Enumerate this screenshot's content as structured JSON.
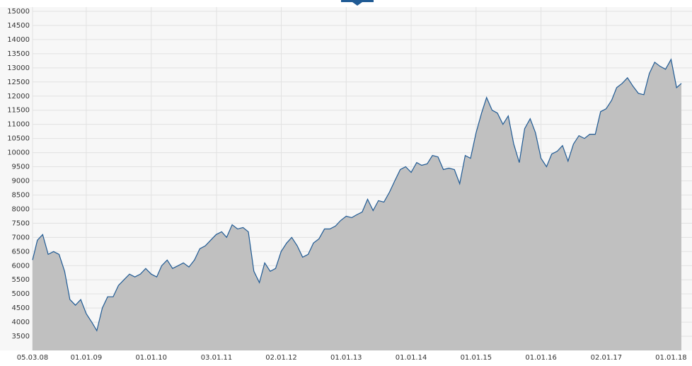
{
  "chart_data": {
    "type": "area",
    "x": [
      "2008-03-05",
      "2008-04-01",
      "2008-05-01",
      "2008-06-01",
      "2008-07-01",
      "2008-08-01",
      "2008-09-01",
      "2008-10-01",
      "2008-11-01",
      "2008-12-01",
      "2009-01-01",
      "2009-02-01",
      "2009-03-01",
      "2009-04-01",
      "2009-05-01",
      "2009-06-01",
      "2009-07-01",
      "2009-08-01",
      "2009-09-01",
      "2009-10-01",
      "2009-11-01",
      "2009-12-01",
      "2010-01-01",
      "2010-02-01",
      "2010-03-01",
      "2010-04-01",
      "2010-05-01",
      "2010-06-01",
      "2010-07-01",
      "2010-08-01",
      "2010-09-01",
      "2010-10-01",
      "2010-11-01",
      "2010-12-01",
      "2011-01-01",
      "2011-02-01",
      "2011-03-01",
      "2011-04-01",
      "2011-05-01",
      "2011-06-01",
      "2011-07-01",
      "2011-08-01",
      "2011-09-01",
      "2011-10-01",
      "2011-11-01",
      "2011-12-01",
      "2012-01-01",
      "2012-02-01",
      "2012-03-01",
      "2012-04-01",
      "2012-05-01",
      "2012-06-01",
      "2012-07-01",
      "2012-08-01",
      "2012-09-01",
      "2012-10-01",
      "2012-11-01",
      "2012-12-01",
      "2013-01-01",
      "2013-02-01",
      "2013-03-01",
      "2013-04-01",
      "2013-05-01",
      "2013-06-01",
      "2013-07-01",
      "2013-08-01",
      "2013-09-01",
      "2013-10-01",
      "2013-11-01",
      "2013-12-01",
      "2014-01-01",
      "2014-02-01",
      "2014-03-01",
      "2014-04-01",
      "2014-05-01",
      "2014-06-01",
      "2014-07-01",
      "2014-08-01",
      "2014-09-01",
      "2014-10-01",
      "2014-11-01",
      "2014-12-01",
      "2015-01-01",
      "2015-02-01",
      "2015-03-01",
      "2015-04-01",
      "2015-05-01",
      "2015-06-01",
      "2015-07-01",
      "2015-08-01",
      "2015-09-01",
      "2015-10-01",
      "2015-11-01",
      "2015-12-01",
      "2016-01-01",
      "2016-02-01",
      "2016-03-01",
      "2016-04-01",
      "2016-05-01",
      "2016-06-01",
      "2016-07-01",
      "2016-08-01",
      "2016-09-01",
      "2016-10-01",
      "2016-11-01",
      "2016-12-01",
      "2017-01-01",
      "2017-02-01",
      "2017-03-01",
      "2017-04-01",
      "2017-05-01",
      "2017-06-01",
      "2017-07-01",
      "2017-08-01",
      "2017-09-01",
      "2017-10-01",
      "2017-11-01",
      "2017-12-01",
      "2018-01-01",
      "2018-02-01",
      "2018-02-28"
    ],
    "series": [
      {
        "color": "#1f5a94",
        "fill": "#c0c0c0",
        "values": [
          6200,
          6900,
          7100,
          6400,
          6500,
          6400,
          5800,
          4800,
          4600,
          4800,
          4300,
          4000,
          3700,
          4500,
          4900,
          4900,
          5300,
          5500,
          5700,
          5600,
          5700,
          5900,
          5700,
          5600,
          6000,
          6200,
          5900,
          6000,
          6100,
          5950,
          6200,
          6600,
          6700,
          6900,
          7100,
          7200,
          7000,
          7450,
          7300,
          7350,
          7200,
          5800,
          5400,
          6100,
          5800,
          5900,
          6500,
          6800,
          7000,
          6700,
          6300,
          6400,
          6800,
          6950,
          7300,
          7300,
          7400,
          7600,
          7750,
          7700,
          7800,
          7900,
          8350,
          7950,
          8300,
          8250,
          8600,
          9000,
          9400,
          9500,
          9300,
          9650,
          9550,
          9600,
          9900,
          9850,
          9400,
          9450,
          9400,
          8900,
          9900,
          9800,
          10700,
          11400,
          11950,
          11500,
          11400,
          11000,
          11300,
          10300,
          9650,
          10850,
          11200,
          10700,
          9800,
          9500,
          9950,
          10050,
          10250,
          9700,
          10300,
          10600,
          10500,
          10650,
          10650,
          11450,
          11550,
          11850,
          12300,
          12450,
          12650,
          12350,
          12100,
          12050,
          12800,
          13200,
          13050,
          12950,
          13300,
          12300,
          12450
        ]
      }
    ],
    "xlim": [
      "2008-03-05",
      "2018-02-28"
    ],
    "xticks": [
      {
        "value": "2008-03-05",
        "label": "05.03.08"
      },
      {
        "value": "2009-01-01",
        "label": "01.01.09"
      },
      {
        "value": "2010-01-01",
        "label": "01.01.10"
      },
      {
        "value": "2011-01-03",
        "label": "03.01.11"
      },
      {
        "value": "2012-01-02",
        "label": "02.01.12"
      },
      {
        "value": "2013-01-01",
        "label": "01.01.13"
      },
      {
        "value": "2014-01-01",
        "label": "01.01.14"
      },
      {
        "value": "2015-01-01",
        "label": "01.01.15"
      },
      {
        "value": "2016-01-01",
        "label": "01.01.16"
      },
      {
        "value": "2017-01-02",
        "label": "02.01.17"
      },
      {
        "value": "2018-01-01",
        "label": "01.01.18"
      }
    ],
    "ylim": [
      3000,
      15000
    ],
    "yticks": [
      3500,
      4000,
      4500,
      5000,
      5500,
      6000,
      6500,
      7000,
      7500,
      8000,
      8500,
      9000,
      9500,
      10000,
      10500,
      11000,
      11500,
      12000,
      12500,
      13000,
      13500,
      14000,
      14500,
      15000
    ],
    "grid": true
  }
}
